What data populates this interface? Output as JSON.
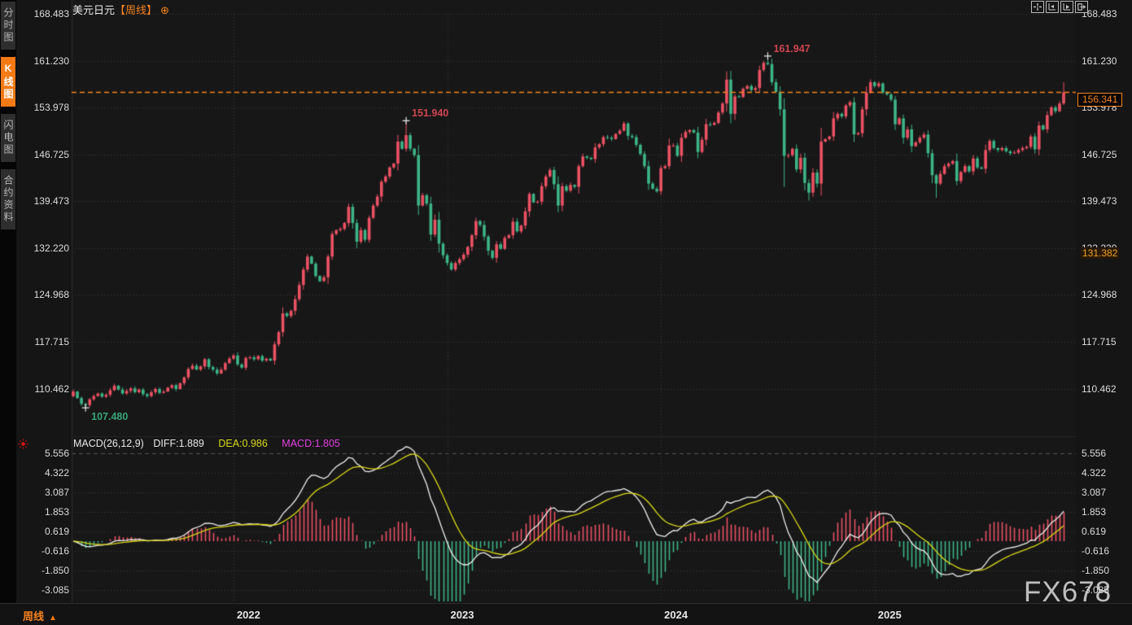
{
  "header": {
    "symbol": "美元日元",
    "period_tag": "【周线】",
    "add_button": "⊕"
  },
  "sidebar": {
    "tabs": [
      {
        "label": "分时图",
        "active": false
      },
      {
        "label": "K线图",
        "active": true
      },
      {
        "label": "闪电图",
        "active": false
      },
      {
        "label": "合约资料",
        "active": false
      }
    ]
  },
  "toolbar": {
    "icons": [
      "pan-crosshair",
      "scale-axis-left",
      "scale-axis-play",
      "exit-restore"
    ]
  },
  "macd_panel": {
    "formula": "MACD(26,12,9)",
    "diff": "DIFF:1.889",
    "dea": "DEA:0.986",
    "macd": "MACD:1.805"
  },
  "price_labels": {
    "current": "156.341",
    "reference": "131.382"
  },
  "bottom_bar": {
    "period": "周线",
    "period_arrow": "▲"
  },
  "watermark": "FX678",
  "colors": {
    "up": "#ea5264",
    "down": "#3db487",
    "accent_orange": "#f5821e",
    "diff_line": "#f0f0f0",
    "dea_line": "#d9d919",
    "macd_value": "#e040e0",
    "grid": "#3c3c3c",
    "high_label": "#cf4550",
    "low_label": "#37a478",
    "plot_bg": "#171717",
    "marker_cross": "#e8e8e8"
  },
  "chart_data": {
    "type": "candlestick",
    "title": "美元日元 周线 (USD/JPY weekly) with MACD(26,12,9)",
    "y_axis_main": [
      "168.483",
      "161.230",
      "153.978",
      "146.725",
      "139.473",
      "132.220",
      "124.968",
      "117.715",
      "110.462"
    ],
    "y_axis_macd": [
      "5.556",
      "4.322",
      "3.087",
      "1.853",
      "0.619",
      "-0.616",
      "-1.850",
      "-3.085"
    ],
    "x_years": [
      {
        "label": "2022",
        "index": 39
      },
      {
        "label": "2023",
        "index": 91
      },
      {
        "label": "2024",
        "index": 143
      },
      {
        "label": "2025",
        "index": 195
      }
    ],
    "first_open": 109.3,
    "weekly_closes": [
      110.0,
      109.0,
      108.1,
      107.9,
      108.8,
      109.3,
      109.7,
      109.2,
      109.5,
      110.2,
      110.9,
      110.3,
      109.7,
      110.1,
      110.5,
      109.9,
      110.3,
      109.6,
      109.3,
      109.9,
      110.4,
      109.8,
      110.0,
      110.6,
      111.0,
      110.4,
      111.3,
      112.2,
      113.5,
      114.0,
      113.4,
      113.9,
      115.0,
      113.8,
      113.4,
      112.8,
      113.4,
      114.4,
      115.1,
      115.6,
      114.2,
      113.7,
      115.2,
      115.3,
      115.0,
      115.5,
      114.8,
      115.1,
      114.8,
      117.3,
      119.2,
      122.1,
      121.7,
      122.5,
      124.3,
      126.5,
      128.9,
      130.9,
      129.8,
      127.9,
      127.1,
      127.7,
      130.9,
      134.4,
      135.0,
      135.2,
      136.1,
      138.6,
      136.1,
      133.2,
      135.0,
      133.5,
      136.9,
      138.8,
      140.2,
      142.5,
      143.3,
      144.7,
      145.3,
      148.7,
      147.6,
      149.7,
      147.6,
      146.6,
      138.8,
      140.4,
      139.1,
      134.3,
      136.6,
      132.9,
      131.1,
      129.9,
      128.9,
      129.9,
      130.5,
      131.2,
      132.4,
      134.2,
      136.4,
      135.8,
      134.0,
      131.8,
      130.7,
      132.8,
      132.1,
      133.8,
      134.2,
      136.3,
      134.8,
      135.7,
      137.9,
      140.6,
      139.3,
      139.4,
      141.8,
      143.3,
      144.3,
      142.1,
      138.8,
      141.8,
      141.1,
      142.0,
      141.7,
      144.9,
      146.4,
      146.2,
      146.0,
      147.8,
      148.3,
      149.4,
      149.3,
      149.1,
      149.9,
      150.4,
      151.5,
      149.6,
      149.4,
      148.2,
      146.8,
      144.9,
      142.2,
      141.4,
      141.0,
      144.6,
      144.9,
      148.1,
      148.1,
      146.5,
      149.3,
      150.2,
      150.5,
      150.1,
      147.1,
      149.0,
      151.4,
      151.3,
      151.6,
      153.2,
      154.6,
      158.3,
      153.0,
      155.7,
      155.6,
      156.9,
      157.3,
      156.7,
      157.0,
      159.8,
      160.9,
      160.7,
      157.9,
      156.4,
      153.7,
      146.5,
      146.6,
      147.6,
      144.4,
      146.2,
      142.3,
      140.8,
      143.9,
      142.2,
      148.7,
      149.1,
      149.5,
      152.3,
      153.0,
      152.6,
      154.3,
      154.8,
      149.8,
      150.0,
      153.7,
      156.3,
      157.9,
      157.3,
      157.7,
      156.3,
      156.0,
      155.2,
      151.4,
      152.3,
      149.3,
      150.6,
      148.0,
      148.6,
      149.3,
      149.8,
      146.9,
      143.5,
      142.2,
      143.7,
      144.9,
      145.3,
      145.7,
      142.6,
      144.0,
      144.9,
      144.1,
      146.1,
      144.7,
      144.5,
      147.4,
      148.8,
      147.7,
      147.4,
      147.7,
      147.2,
      146.9,
      147.0,
      147.4,
      147.7,
      147.9,
      149.5,
      147.5,
      151.2,
      150.6,
      152.8,
      154.0,
      153.4,
      154.6,
      156.341
    ],
    "wick_overrides": {
      "3": {
        "low": 107.48
      },
      "81": {
        "high": 151.94
      },
      "169": {
        "high": 161.947
      },
      "173": {
        "low": 141.68
      },
      "179": {
        "low": 139.58
      },
      "210": {
        "low": 140.0
      },
      "241": {
        "high": 157.9
      }
    },
    "marked_points": [
      {
        "index": 3,
        "type": "low",
        "value": 107.48,
        "label": "107.480"
      },
      {
        "index": 81,
        "type": "high",
        "value": 151.94,
        "label": "151.940"
      },
      {
        "index": 169,
        "type": "high",
        "value": 161.947,
        "label": "161.947"
      }
    ],
    "current_price": 156.341,
    "reference_price": 131.382,
    "macd_settings": {
      "slow": 26,
      "fast": 12,
      "signal": 9,
      "diff": 1.889,
      "dea": 0.986,
      "macd": 1.805
    }
  }
}
